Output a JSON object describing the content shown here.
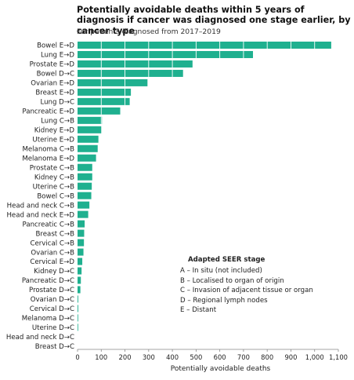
{
  "header": {
    "title": "Potentially avoidable deaths within 5 years of diagnosis if cancer was diagnosed one stage earlier, by cancer type",
    "subtitle": "For patients diagnosed from 2017–2019"
  },
  "legend": {
    "title": "Adapted SEER stage",
    "items": [
      "A – In situ (not included)",
      "B – Localised to organ of origin",
      "C – Invasion of adjacent tissue or organ",
      "D – Regional lymph nodes",
      "E – Distant"
    ]
  },
  "colors": {
    "bar": "#1fb08f",
    "text": "#222222",
    "axis": "#888888"
  },
  "chart_data": {
    "type": "bar",
    "orientation": "horizontal",
    "xlabel": "Potentially avoidable deaths",
    "xlim": [
      0,
      1100
    ],
    "xticks": [
      0,
      100,
      200,
      300,
      400,
      500,
      600,
      700,
      800,
      900,
      1000,
      1100
    ],
    "xtick_labels": [
      "0",
      "100",
      "200",
      "300",
      "400",
      "500",
      "600",
      "700",
      "800",
      "900",
      "1,000",
      "1,100"
    ],
    "grid": "vertical white lines within bars",
    "categories": [
      "Bowel E→D",
      "Lung E→D",
      "Prostate E→D",
      "Bowel D→C",
      "Ovarian E→D",
      "Breast E→D",
      "Lung D→C",
      "Pancreatic E→D",
      "Lung C→B",
      "Kidney E→D",
      "Uterine E→D",
      "Melanoma C→B",
      "Melanoma E→D",
      "Prostate C→B",
      "Kidney C→B",
      "Uterine C→B",
      "Bowel C→B",
      "Head and neck C→B",
      "Head and neck E→D",
      "Pancreatic C→B",
      "Breast C→B",
      "Cervical C→B",
      "Ovarian C→B",
      "Cervical E→D",
      "Kidney D→C",
      "Pancreatic D→C",
      "Prostate D→C",
      "Ovarian D→C",
      "Cervical D→C",
      "Melanoma D→C",
      "Uterine D→C",
      "Head and neck D→C",
      "Breast D→C"
    ],
    "values": [
      1070,
      740,
      485,
      445,
      295,
      225,
      220,
      180,
      103,
      100,
      88,
      85,
      78,
      62,
      62,
      60,
      58,
      50,
      45,
      30,
      28,
      27,
      25,
      20,
      17,
      14,
      12,
      3,
      3,
      2,
      1,
      0,
      0
    ]
  }
}
